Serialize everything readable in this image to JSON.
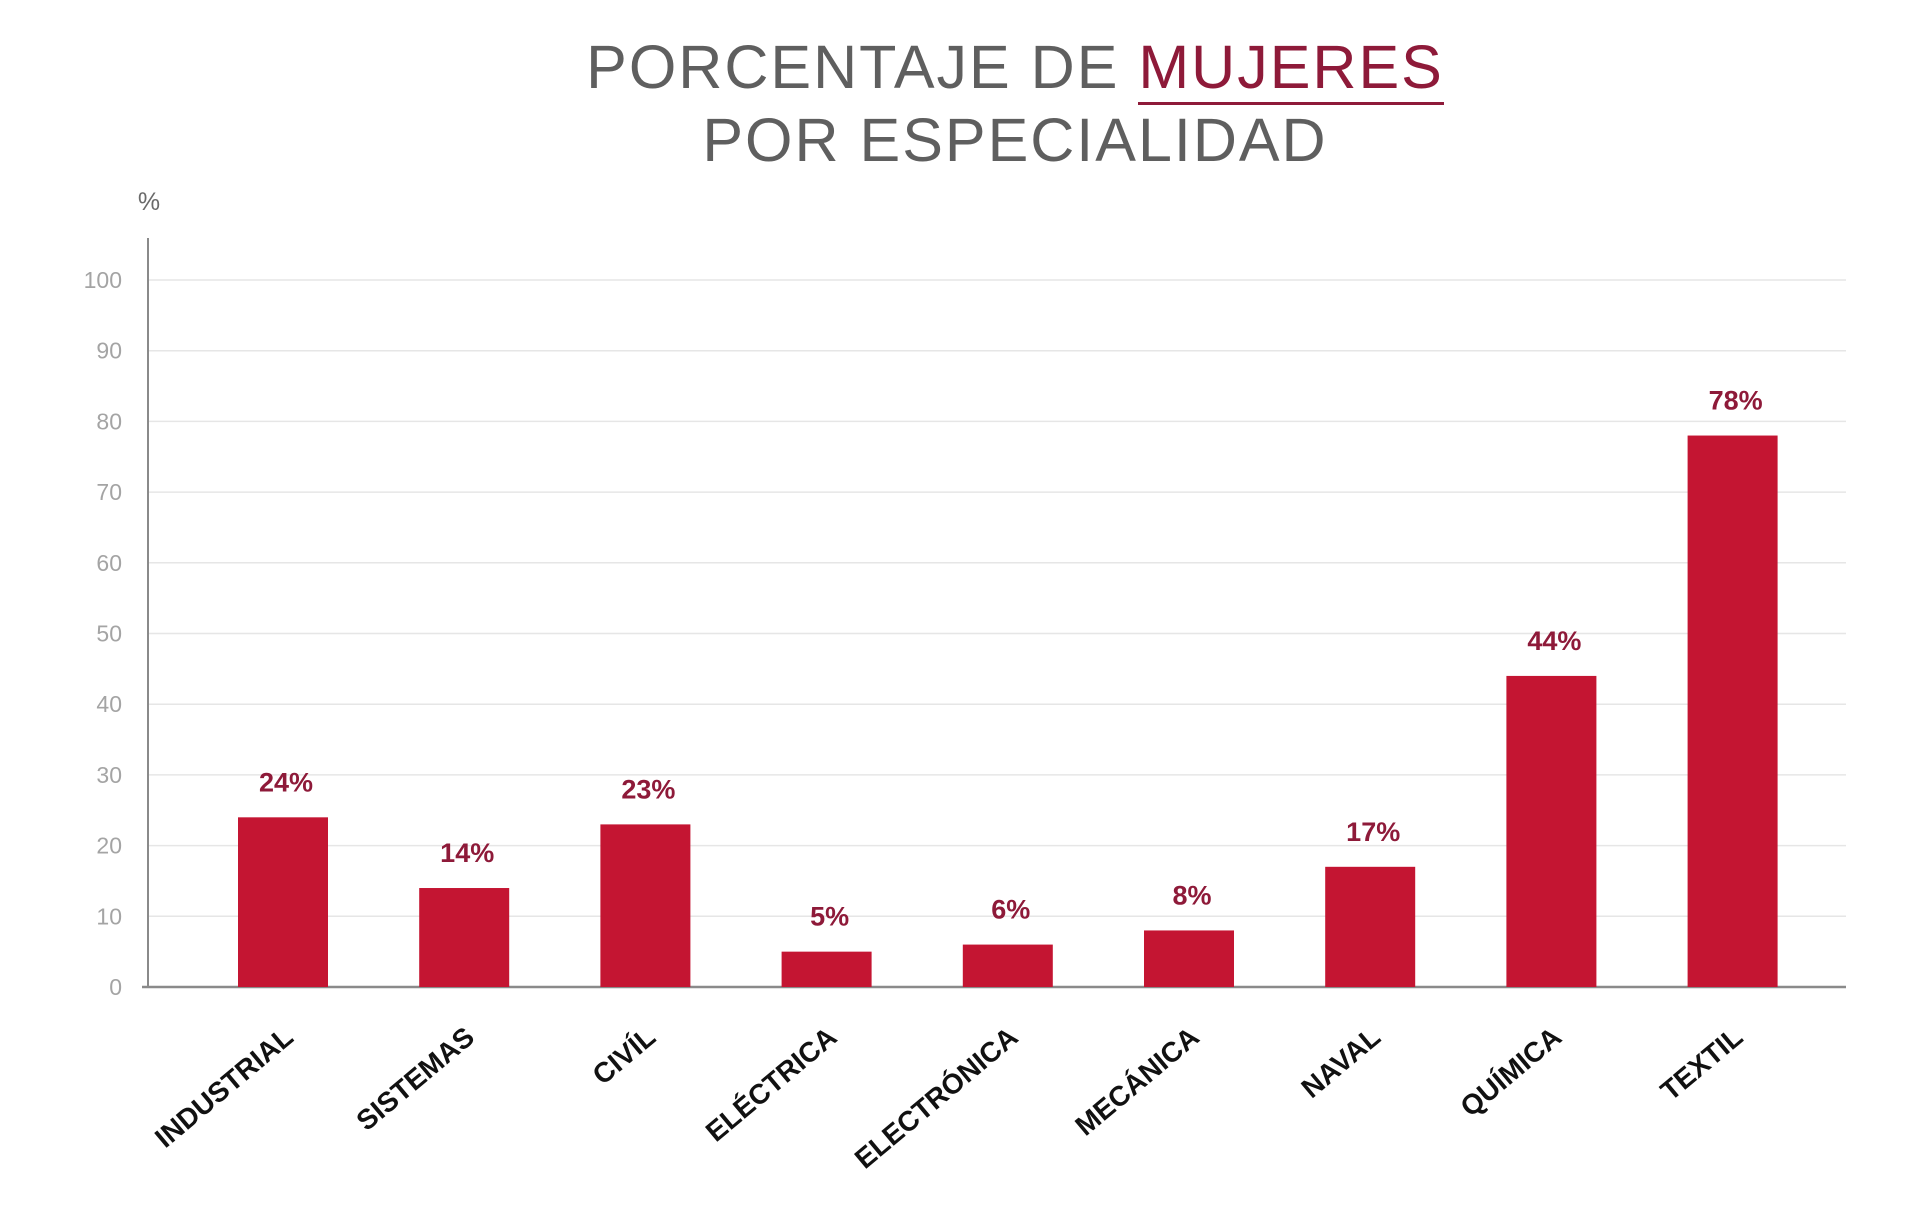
{
  "title": {
    "prefix": "PORCENTAJE DE ",
    "accent": "MUJERES",
    "line2": "POR ESPECIALIDAD"
  },
  "colors": {
    "bar": "#c41532",
    "value_label": "#8e1a39",
    "title_accent": "#8e1a39"
  },
  "chart_data": {
    "type": "bar",
    "title": "PORCENTAJE DE MUJERES POR ESPECIALIDAD",
    "unit_label": "%",
    "categories": [
      "INDUSTRIAL",
      "SISTEMAS",
      "CIVÍL",
      "ELÉCTRICA",
      "ELECTRÓNICA",
      "MECÁNICA",
      "NAVAL",
      "QUÍMICA",
      "TEXTIL"
    ],
    "values": [
      24,
      14,
      23,
      5,
      6,
      8,
      17,
      44,
      78
    ],
    "value_labels": [
      "24%",
      "14%",
      "23%",
      "5%",
      "6%",
      "8%",
      "17%",
      "44%",
      "78%"
    ],
    "ylim": [
      0,
      100
    ],
    "yticks": [
      0,
      10,
      20,
      30,
      40,
      50,
      60,
      70,
      80,
      90,
      100
    ],
    "grid": true,
    "legend": "none"
  }
}
